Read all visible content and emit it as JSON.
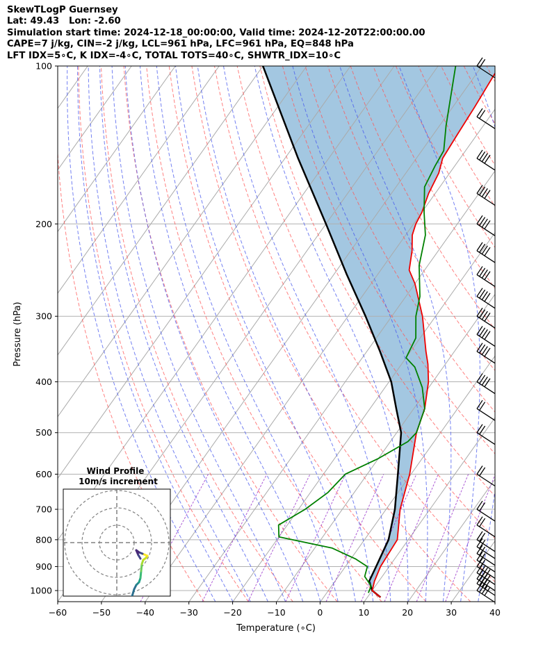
{
  "header": {
    "line1": "SkewTLogP Guernsey",
    "line2": "Lat: 49.43   Lon: -2.60",
    "line3": "Simulation start time: 2024-12-18_00:00:00, Valid time: 2024-12-20T22:00:00.00",
    "line4": "CAPE=7 j/kg, CIN=-2 j/kg, LCL=961 hPa, LFC=961 hPa, EQ=848 hPa",
    "line5": "LFT IDX=5∘C, K IDX=-4∘C, TOTAL TOTS=40∘C, SHWTR_IDX=10∘C"
  },
  "chart_data": {
    "type": "line",
    "subtype": "skew-t log-p",
    "xlabel": "Temperature (∘C)",
    "ylabel": "Pressure (hPa)",
    "xlim": [
      -60,
      40
    ],
    "ylim": [
      1050,
      100
    ],
    "x_ticks": [
      "−60",
      "−50",
      "−40",
      "−30",
      "−20",
      "−10",
      "0",
      "10",
      "20",
      "30",
      "40"
    ],
    "x_tick_values": [
      -60,
      -50,
      -40,
      -30,
      -20,
      -10,
      0,
      10,
      20,
      30,
      40
    ],
    "y_ticks": [
      "1000",
      "900",
      "800",
      "700",
      "600",
      "500",
      "400",
      "300",
      "200",
      "100"
    ],
    "y_tick_values": [
      1000,
      900,
      800,
      700,
      600,
      500,
      400,
      300,
      200,
      100
    ],
    "colors": {
      "temperature": "#ee0000",
      "dewpoint": "#008000",
      "parcel": "#000000",
      "cape_fill": "#9ec4df",
      "dry_adiabat": "#ff5555",
      "moist_adiabat": "#4455ee",
      "mixing_ratio": "#9933cc",
      "isotherm": "#aaaaaa"
    },
    "series": [
      {
        "name": "Temperature",
        "points": [
          [
            1030,
            13
          ],
          [
            1000,
            10
          ],
          [
            960,
            9
          ],
          [
            900,
            8
          ],
          [
            800,
            7.5
          ],
          [
            700,
            3.2
          ],
          [
            600,
            -0.3
          ],
          [
            500,
            -5.5
          ],
          [
            450,
            -7.5
          ],
          [
            400,
            -11
          ],
          [
            370,
            -14
          ],
          [
            350,
            -16.5
          ],
          [
            300,
            -23
          ],
          [
            260,
            -30
          ],
          [
            245,
            -33.5
          ],
          [
            225,
            -36
          ],
          [
            210,
            -38.5
          ],
          [
            200,
            -39.5
          ],
          [
            190,
            -40
          ],
          [
            175,
            -41.5
          ],
          [
            160,
            -42.5
          ],
          [
            150,
            -44
          ],
          [
            135,
            -44.5
          ],
          [
            120,
            -45
          ],
          [
            100,
            -46
          ]
        ]
      },
      {
        "name": "Dewpoint",
        "points": [
          [
            1010,
            9.5
          ],
          [
            980,
            9
          ],
          [
            940,
            6
          ],
          [
            900,
            5
          ],
          [
            870,
            1
          ],
          [
            830,
            -6
          ],
          [
            790,
            -20
          ],
          [
            750,
            -22
          ],
          [
            700,
            -18.5
          ],
          [
            650,
            -16
          ],
          [
            600,
            -15
          ],
          [
            560,
            -10
          ],
          [
            520,
            -6
          ],
          [
            500,
            -5.5
          ],
          [
            450,
            -7.5
          ],
          [
            410,
            -11.5
          ],
          [
            375,
            -16.5
          ],
          [
            360,
            -20
          ],
          [
            330,
            -21
          ],
          [
            300,
            -24.5
          ],
          [
            275,
            -26.8
          ],
          [
            240,
            -32
          ],
          [
            210,
            -35.5
          ],
          [
            190,
            -39.5
          ],
          [
            170,
            -43.5
          ],
          [
            155,
            -44.5
          ],
          [
            145,
            -45
          ],
          [
            130,
            -48.5
          ],
          [
            100,
            -56
          ]
        ]
      },
      {
        "name": "Parcel",
        "points": [
          [
            1030,
            13
          ],
          [
            1000,
            10
          ],
          [
            960,
            7.8
          ],
          [
            900,
            7
          ],
          [
            800,
            5.5
          ],
          [
            700,
            2
          ],
          [
            600,
            -3
          ],
          [
            500,
            -9
          ],
          [
            450,
            -14
          ],
          [
            400,
            -19.5
          ],
          [
            350,
            -27
          ],
          [
            300,
            -36
          ],
          [
            250,
            -47
          ],
          [
            200,
            -60
          ],
          [
            150,
            -77
          ],
          [
            100,
            -100
          ]
        ]
      }
    ],
    "cape_region": "shaded between parcel and dewpoint/temperature from ~960 hPa to 100 hPa",
    "wind_barbs_pressures": [
      1000,
      970,
      950,
      925,
      900,
      875,
      850,
      825,
      800,
      750,
      700,
      600,
      500,
      450,
      400,
      350,
      325,
      300,
      275,
      250,
      225,
      200,
      175,
      150,
      125,
      100
    ],
    "hodograph": {
      "title": "Wind Profile",
      "subtitle": "10m/s increment",
      "rings_m_s": [
        10,
        20,
        30
      ]
    }
  }
}
